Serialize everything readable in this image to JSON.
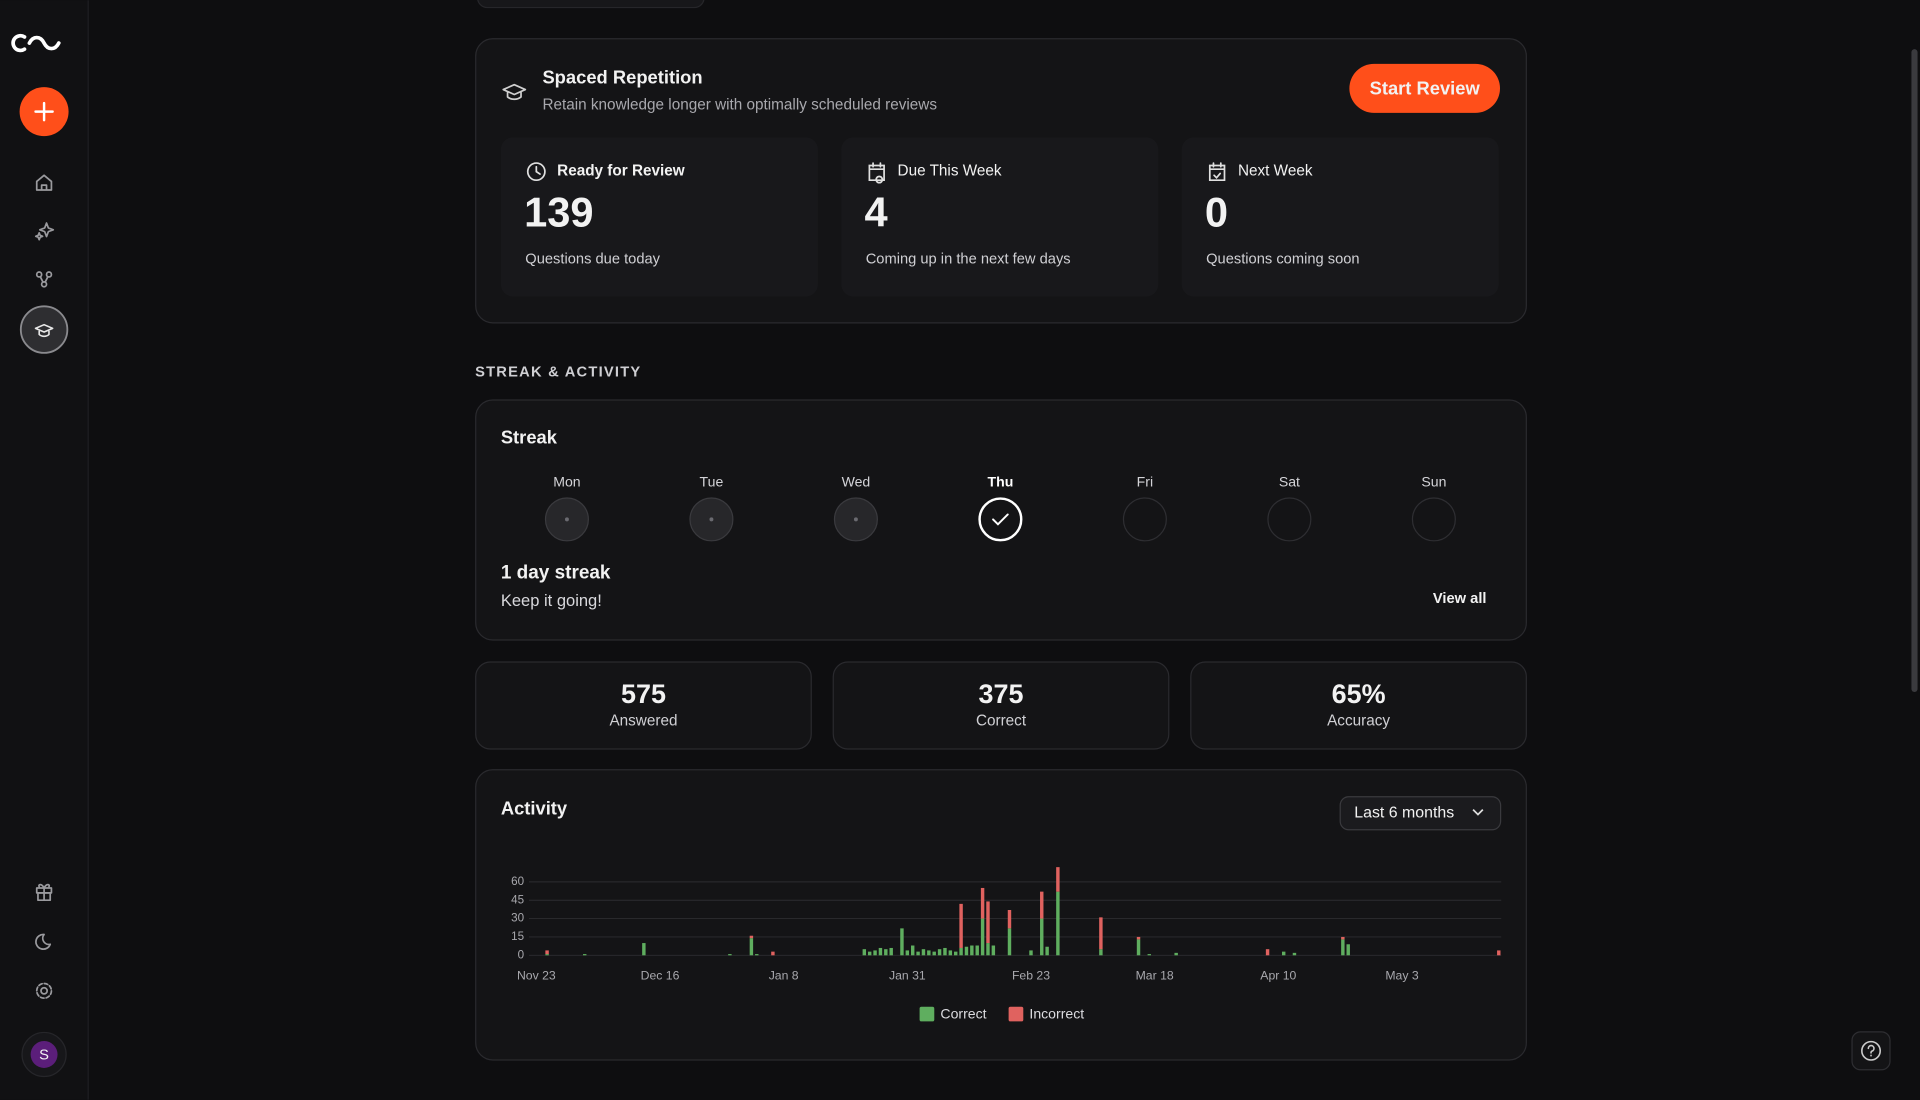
{
  "sidebar": {
    "avatar": "S"
  },
  "review": {
    "title": "Spaced Repetition",
    "subtitle": "Retain knowledge longer with optimally scheduled reviews",
    "button": "Start Review",
    "panels": [
      {
        "label": "Ready for Review",
        "value": 139,
        "caption": "Questions due today",
        "icon": "clock"
      },
      {
        "label": "Due This Week",
        "value": 4,
        "caption": "Coming up in the next few days",
        "icon": "calendar-clock"
      },
      {
        "label": "Next Week",
        "value": 0,
        "caption": "Questions coming soon",
        "icon": "calendar-check"
      }
    ]
  },
  "section_title": "STREAK & ACTIVITY",
  "streak": {
    "title": "Streak",
    "days": [
      {
        "label": "Mon",
        "state": "missed"
      },
      {
        "label": "Tue",
        "state": "missed"
      },
      {
        "label": "Wed",
        "state": "missed"
      },
      {
        "label": "Thu",
        "state": "done"
      },
      {
        "label": "Fri",
        "state": "upcoming"
      },
      {
        "label": "Sat",
        "state": "upcoming"
      },
      {
        "label": "Sun",
        "state": "upcoming"
      }
    ],
    "headline": "1 day streak",
    "message": "Keep it going!",
    "link": "View all"
  },
  "stats": [
    {
      "value": 575,
      "label": "Answered"
    },
    {
      "value": 375,
      "label": "Correct"
    },
    {
      "value": "65%",
      "label": "Accuracy"
    }
  ],
  "activity": {
    "title": "Activity",
    "range": "Last 6 months",
    "chart_data": {
      "type": "bar",
      "stacked": true,
      "grid": true,
      "legend": "bottom",
      "categories": [
        "Nov 23",
        null,
        null,
        null,
        null,
        null,
        null,
        null,
        null,
        null,
        null,
        null,
        null,
        null,
        null,
        null,
        null,
        null,
        null,
        null,
        null,
        null,
        null,
        "Dec 16",
        null,
        null,
        null,
        null,
        null,
        null,
        null,
        null,
        null,
        null,
        null,
        null,
        null,
        null,
        null,
        null,
        null,
        null,
        null,
        null,
        null,
        null,
        "Jan 8",
        null,
        null,
        null,
        null,
        null,
        null,
        null,
        null,
        null,
        null,
        null,
        null,
        null,
        null,
        null,
        null,
        null,
        null,
        null,
        null,
        null,
        null,
        "Jan 31",
        null,
        null,
        null,
        null,
        null,
        null,
        null,
        null,
        null,
        null,
        null,
        null,
        null,
        null,
        null,
        null,
        null,
        null,
        null,
        null,
        null,
        null,
        "Feb 23",
        null,
        null,
        null,
        null,
        null,
        null,
        null,
        null,
        null,
        null,
        null,
        null,
        null,
        null,
        null,
        null,
        null,
        null,
        null,
        null,
        null,
        null,
        "Mar 18",
        null,
        null,
        null,
        null,
        null,
        null,
        null,
        null,
        null,
        null,
        null,
        null,
        null,
        null,
        null,
        null,
        null,
        null,
        null,
        null,
        null,
        null,
        "Apr 10",
        null,
        null,
        null,
        null,
        null,
        null,
        null,
        null,
        null,
        null,
        null,
        null,
        null,
        null,
        null,
        null,
        null,
        null,
        null,
        null,
        null,
        null,
        "May 3",
        null,
        null,
        null,
        null,
        null,
        null,
        null,
        null,
        null,
        null,
        null,
        null,
        null,
        null,
        null,
        null,
        null,
        null
      ],
      "series": [
        {
          "name": "Correct",
          "color": "#5fae5f",
          "values": [
            0,
            0,
            1,
            0,
            0,
            0,
            0,
            0,
            0,
            1,
            0,
            0,
            0,
            0,
            0,
            0,
            0,
            0,
            0,
            0,
            10,
            0,
            0,
            0,
            0,
            0,
            0,
            0,
            0,
            0,
            0,
            0,
            0,
            0,
            0,
            0,
            1,
            0,
            0,
            0,
            14,
            1,
            0,
            0,
            0,
            0,
            0,
            0,
            0,
            0,
            0,
            0,
            0,
            0,
            0,
            0,
            0,
            0,
            0,
            0,
            0,
            5,
            3,
            4,
            6,
            5,
            6,
            0,
            22,
            4,
            8,
            3,
            5,
            4,
            3,
            5,
            6,
            4,
            3,
            6,
            7,
            8,
            8,
            30,
            10,
            8,
            0,
            0,
            22,
            0,
            0,
            0,
            4,
            0,
            30,
            7,
            0,
            52,
            0,
            0,
            0,
            0,
            0,
            0,
            0,
            5,
            0,
            0,
            0,
            0,
            0,
            0,
            13,
            0,
            1,
            0,
            0,
            0,
            0,
            2,
            0,
            0,
            0,
            0,
            0,
            0,
            0,
            0,
            0,
            0,
            0,
            0,
            0,
            0,
            0,
            0,
            0,
            0,
            0,
            3,
            0,
            2,
            0,
            0,
            0,
            0,
            0,
            0,
            0,
            0,
            13,
            9,
            0,
            0,
            0,
            0,
            0,
            0,
            0,
            0,
            0,
            0,
            0,
            0,
            0,
            0,
            0,
            0,
            0,
            0,
            0,
            0,
            0,
            0,
            0,
            0,
            0,
            0,
            0,
            0
          ]
        },
        {
          "name": "Incorrect",
          "color": "#e0625f",
          "values": [
            0,
            0,
            3,
            0,
            0,
            0,
            0,
            0,
            0,
            0,
            0,
            0,
            0,
            0,
            0,
            0,
            0,
            0,
            0,
            0,
            0,
            0,
            0,
            0,
            0,
            0,
            0,
            0,
            0,
            0,
            0,
            0,
            0,
            0,
            0,
            0,
            0,
            0,
            0,
            0,
            2,
            0,
            0,
            0,
            3,
            0,
            0,
            0,
            0,
            0,
            0,
            0,
            0,
            0,
            0,
            0,
            0,
            0,
            0,
            0,
            0,
            0,
            0,
            0,
            0,
            0,
            0,
            0,
            0,
            0,
            0,
            0,
            0,
            0,
            0,
            0,
            0,
            0,
            0,
            36,
            0,
            0,
            0,
            25,
            34,
            0,
            0,
            0,
            15,
            0,
            0,
            0,
            0,
            0,
            22,
            0,
            0,
            20,
            0,
            0,
            0,
            0,
            0,
            0,
            0,
            26,
            0,
            0,
            0,
            0,
            0,
            0,
            2,
            0,
            0,
            0,
            0,
            0,
            0,
            0,
            0,
            0,
            0,
            0,
            0,
            0,
            0,
            0,
            0,
            0,
            0,
            0,
            0,
            0,
            0,
            0,
            5,
            0,
            0,
            0,
            0,
            0,
            0,
            0,
            0,
            0,
            0,
            0,
            0,
            0,
            2,
            0,
            0,
            0,
            0,
            0,
            0,
            0,
            0,
            0,
            0,
            0,
            0,
            0,
            0,
            0,
            0,
            0,
            0,
            0,
            0,
            0,
            0,
            0,
            0,
            0,
            0,
            0,
            0,
            4
          ]
        }
      ],
      "ylim": [
        0,
        75
      ],
      "yticks": [
        0,
        15,
        30,
        45,
        60
      ]
    }
  }
}
